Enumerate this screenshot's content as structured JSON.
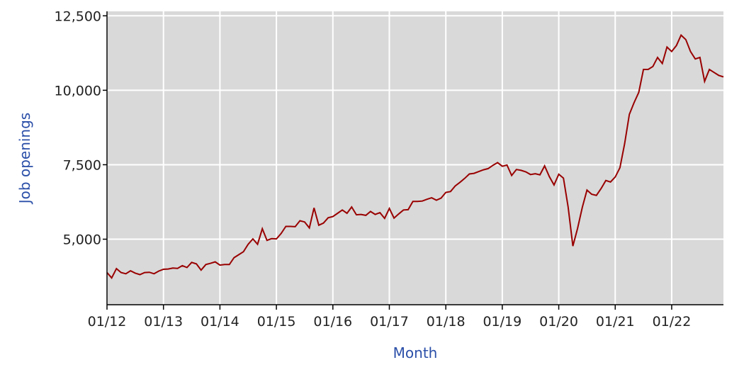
{
  "chart_data": {
    "type": "line",
    "title": "",
    "xlabel": "Month",
    "ylabel": "Job openings",
    "x_range": [
      "2012-01",
      "2022-12"
    ],
    "ylim": [
      2800,
      12650
    ],
    "grid": true,
    "legend": "none",
    "colors": {
      "plot_background": "#d9d9d9",
      "gridline": "#ffffff",
      "series": "#990000",
      "axis_title": "#2b4fa8",
      "tick_text": "#222222",
      "axis_line": "#000000"
    },
    "y_ticks": [
      {
        "value": 5000,
        "label": "5,000"
      },
      {
        "value": 7500,
        "label": "7,500"
      },
      {
        "value": 10000,
        "label": "10,000"
      },
      {
        "value": 12500,
        "label": "12,500"
      }
    ],
    "x_ticks": [
      {
        "value": "2012-01",
        "label": "01/12"
      },
      {
        "value": "2013-01",
        "label": "01/13"
      },
      {
        "value": "2014-01",
        "label": "01/14"
      },
      {
        "value": "2015-01",
        "label": "01/15"
      },
      {
        "value": "2016-01",
        "label": "01/16"
      },
      {
        "value": "2017-01",
        "label": "01/17"
      },
      {
        "value": "2018-01",
        "label": "01/18"
      },
      {
        "value": "2019-01",
        "label": "01/19"
      },
      {
        "value": "2020-01",
        "label": "01/20"
      },
      {
        "value": "2021-01",
        "label": "01/21"
      },
      {
        "value": "2022-01",
        "label": "01/22"
      }
    ],
    "series": [
      {
        "x": [
          "2012-01",
          "2012-02",
          "2012-03",
          "2012-04",
          "2012-05",
          "2012-06",
          "2012-07",
          "2012-08",
          "2012-09",
          "2012-10",
          "2012-11",
          "2012-12",
          "2013-01",
          "2013-02",
          "2013-03",
          "2013-04",
          "2013-05",
          "2013-06",
          "2013-07",
          "2013-08",
          "2013-09",
          "2013-10",
          "2013-11",
          "2013-12",
          "2014-01",
          "2014-02",
          "2014-03",
          "2014-04",
          "2014-05",
          "2014-06",
          "2014-07",
          "2014-08",
          "2014-09",
          "2014-10",
          "2014-11",
          "2014-12",
          "2015-01",
          "2015-02",
          "2015-03",
          "2015-04",
          "2015-05",
          "2015-06",
          "2015-07",
          "2015-08",
          "2015-09",
          "2015-10",
          "2015-11",
          "2015-12",
          "2016-01",
          "2016-02",
          "2016-03",
          "2016-04",
          "2016-05",
          "2016-06",
          "2016-07",
          "2016-08",
          "2016-09",
          "2016-10",
          "2016-11",
          "2016-12",
          "2017-01",
          "2017-02",
          "2017-03",
          "2017-04",
          "2017-05",
          "2017-06",
          "2017-07",
          "2017-08",
          "2017-09",
          "2017-10",
          "2017-11",
          "2017-12",
          "2018-01",
          "2018-02",
          "2018-03",
          "2018-04",
          "2018-05",
          "2018-06",
          "2018-07",
          "2018-08",
          "2018-09",
          "2018-10",
          "2018-11",
          "2018-12",
          "2019-01",
          "2019-02",
          "2019-03",
          "2019-04",
          "2019-05",
          "2019-06",
          "2019-07",
          "2019-08",
          "2019-09",
          "2019-10",
          "2019-11",
          "2019-12",
          "2020-01",
          "2020-02",
          "2020-03",
          "2020-04",
          "2020-05",
          "2020-06",
          "2020-07",
          "2020-08",
          "2020-09",
          "2020-10",
          "2020-11",
          "2020-12",
          "2021-01",
          "2021-02",
          "2021-03",
          "2021-04",
          "2021-05",
          "2021-06",
          "2021-07",
          "2021-08",
          "2021-09",
          "2021-10",
          "2021-11",
          "2021-12",
          "2022-01",
          "2022-02",
          "2022-03",
          "2022-04",
          "2022-05",
          "2022-06",
          "2022-07",
          "2022-08",
          "2022-09",
          "2022-10",
          "2022-11",
          "2022-12"
        ],
        "values": [
          3880,
          3700,
          4010,
          3880,
          3840,
          3940,
          3860,
          3810,
          3880,
          3890,
          3840,
          3930,
          3990,
          4000,
          4030,
          4020,
          4110,
          4050,
          4220,
          4170,
          3960,
          4150,
          4190,
          4240,
          4130,
          4150,
          4150,
          4380,
          4480,
          4580,
          4830,
          5010,
          4830,
          5350,
          4960,
          5020,
          5010,
          5190,
          5430,
          5430,
          5420,
          5620,
          5580,
          5380,
          6050,
          5470,
          5540,
          5720,
          5760,
          5870,
          5980,
          5870,
          6080,
          5820,
          5830,
          5800,
          5930,
          5830,
          5890,
          5700,
          6030,
          5710,
          5850,
          5980,
          5990,
          6270,
          6270,
          6280,
          6340,
          6390,
          6310,
          6380,
          6570,
          6600,
          6790,
          6910,
          7040,
          7190,
          7210,
          7270,
          7330,
          7370,
          7480,
          7570,
          7450,
          7490,
          7140,
          7340,
          7310,
          7260,
          7170,
          7200,
          7160,
          7460,
          7100,
          6820,
          7180,
          7050,
          6080,
          4770,
          5360,
          6070,
          6650,
          6510,
          6470,
          6700,
          6970,
          6920,
          7090,
          7400,
          8200,
          9190,
          9580,
          9930,
          10700,
          10700,
          10800,
          11100,
          10900,
          11450,
          11300,
          11500,
          11850,
          11700,
          11300,
          11050,
          11100,
          10300,
          10700,
          10600,
          10500,
          10450
        ]
      }
    ]
  }
}
